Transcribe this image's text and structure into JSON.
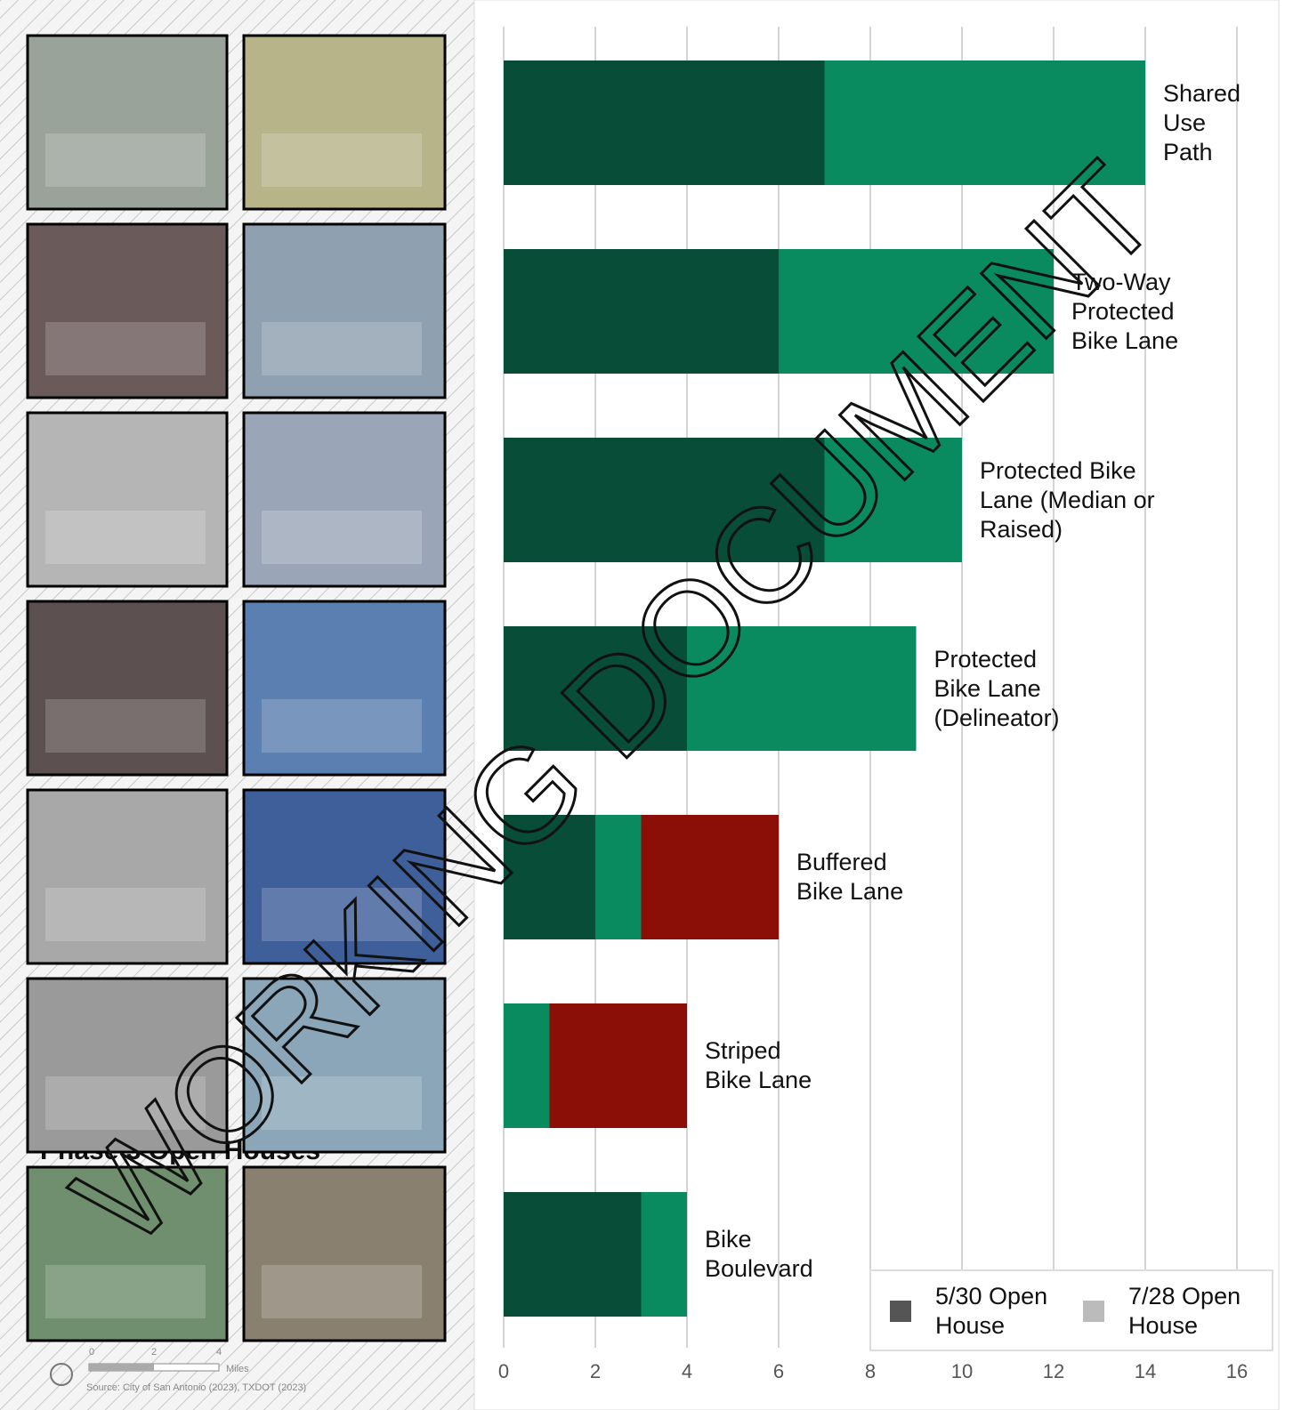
{
  "chart_data": {
    "type": "hbar-stacked",
    "categories": [
      "Shared Use Path",
      "Two-Way Protected Bike Lane",
      "Protected Bike Lane (Median or Raised)",
      "Protected Bike Lane (Delineator)",
      "Buffered Bike Lane",
      "Striped Bike Lane",
      "Bike Boulevard"
    ],
    "series": [
      {
        "name": "5/30 Open House",
        "color": "#074d38",
        "legend_color": "#555555",
        "values": [
          7,
          6,
          7,
          4,
          2,
          0,
          3
        ]
      },
      {
        "name": "7/28 Open House",
        "color": "#0a8a5f",
        "legend_color": "#bbbbbb",
        "values": [
          7,
          6,
          3,
          5,
          1,
          1,
          1
        ]
      },
      {
        "color": "#8b0f06",
        "values": [
          0,
          0,
          0,
          0,
          3,
          3,
          0
        ]
      }
    ],
    "xlim": [
      0,
      16
    ],
    "xticks": [
      0,
      2,
      4,
      6,
      8,
      10,
      12,
      14,
      16
    ],
    "grid": true,
    "legend": "lower right"
  },
  "map": {
    "heading": "Phase 3 Open Houses",
    "scale_labels": [
      "0",
      "2",
      "4",
      "Miles"
    ],
    "source": "Source: City of San Antonio (2023), TXDOT (2023)"
  },
  "watermark": "WORKING DOCUMENT"
}
